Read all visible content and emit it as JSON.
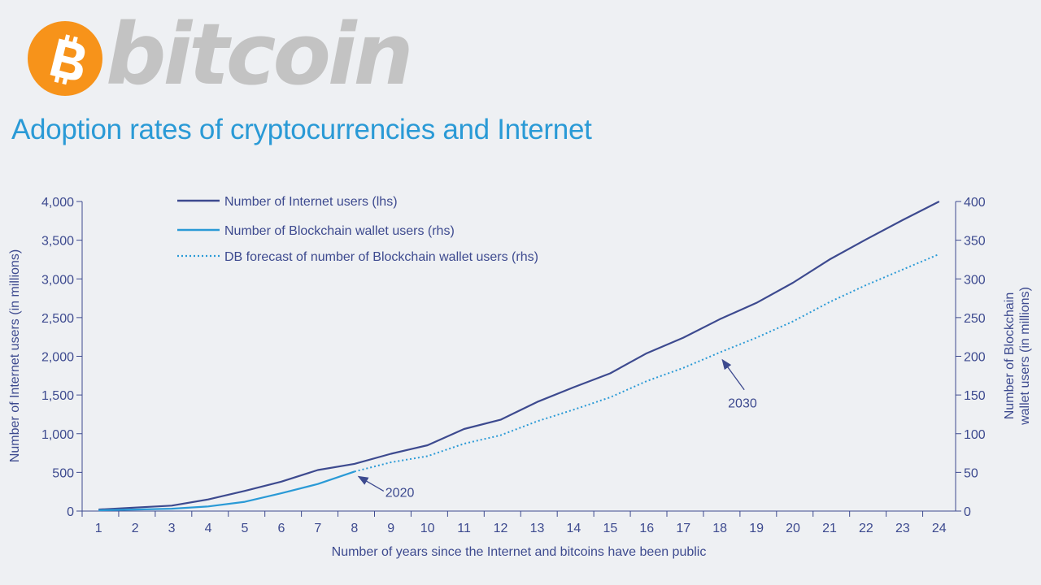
{
  "logo": {
    "text": "bitcoin",
    "symbol_color": "#f7931a",
    "text_color": "#c3c3c3"
  },
  "title": "Adoption rates of cryptocurrencies and Internet",
  "colors": {
    "internet": "#3d4a8f",
    "wallet": "#2a9ad6",
    "axis": "#3d4a8f",
    "title": "#2a9ad6",
    "background": "#eef0f3"
  },
  "chart_data": {
    "type": "line",
    "title": "Adoption rates of cryptocurrencies and Internet",
    "xlabel": "Number of years since the Internet and bitcoins have been public",
    "ylabel_left": "Number of Internet users (in millions)",
    "ylabel_right": "Number of Blockchain wallet users (in millions)",
    "x": [
      1,
      2,
      3,
      4,
      5,
      6,
      7,
      8,
      9,
      10,
      11,
      12,
      13,
      14,
      15,
      16,
      17,
      18,
      19,
      20,
      21,
      22,
      23,
      24
    ],
    "xlim": [
      0.55,
      24.45
    ],
    "ylim_left": [
      0,
      4000
    ],
    "ylim_right": [
      0,
      400
    ],
    "yticks_left": [
      "0",
      "500",
      "1,000",
      "1,500",
      "2,000",
      "2,500",
      "3,000",
      "3,500",
      "4,000"
    ],
    "yticks_right": [
      "0",
      "50",
      "100",
      "150",
      "200",
      "250",
      "300",
      "350",
      "400"
    ],
    "grid": false,
    "legend_position": "top-left",
    "series": [
      {
        "name": "Number of Internet users (lhs)",
        "axis": "left",
        "style": "solid",
        "x": [
          1,
          2,
          3,
          4,
          5,
          6,
          7,
          8,
          9,
          10,
          11,
          12,
          13,
          14,
          15,
          16,
          17,
          18,
          19,
          20,
          21,
          22,
          23,
          24
        ],
        "values": [
          20,
          45,
          70,
          150,
          260,
          380,
          530,
          610,
          740,
          850,
          1060,
          1180,
          1410,
          1600,
          1780,
          2040,
          2240,
          2480,
          2690,
          2950,
          3250,
          3510,
          3760,
          4000
        ]
      },
      {
        "name": "Number of Blockchain wallet users (rhs)",
        "axis": "right",
        "style": "solid",
        "x": [
          1,
          2,
          3,
          4,
          5,
          6,
          7,
          8
        ],
        "values": [
          1,
          2,
          3,
          6,
          12,
          23,
          35,
          51
        ]
      },
      {
        "name": "DB forecast of number of Blockchain wallet users (rhs)",
        "axis": "right",
        "style": "dotted",
        "x": [
          8,
          9,
          10,
          11,
          12,
          13,
          14,
          15,
          16,
          17,
          18,
          19,
          20,
          21,
          22,
          23,
          24
        ],
        "values": [
          51,
          63,
          71,
          87,
          98,
          116,
          131,
          147,
          168,
          185,
          205,
          224,
          245,
          270,
          292,
          312,
          332
        ]
      }
    ],
    "annotations": [
      {
        "text": "2020",
        "x": 8,
        "series": "Number of Blockchain wallet users (rhs)"
      },
      {
        "text": "2030",
        "x": 18,
        "series": "DB forecast of number of Blockchain wallet users (rhs)"
      }
    ]
  }
}
